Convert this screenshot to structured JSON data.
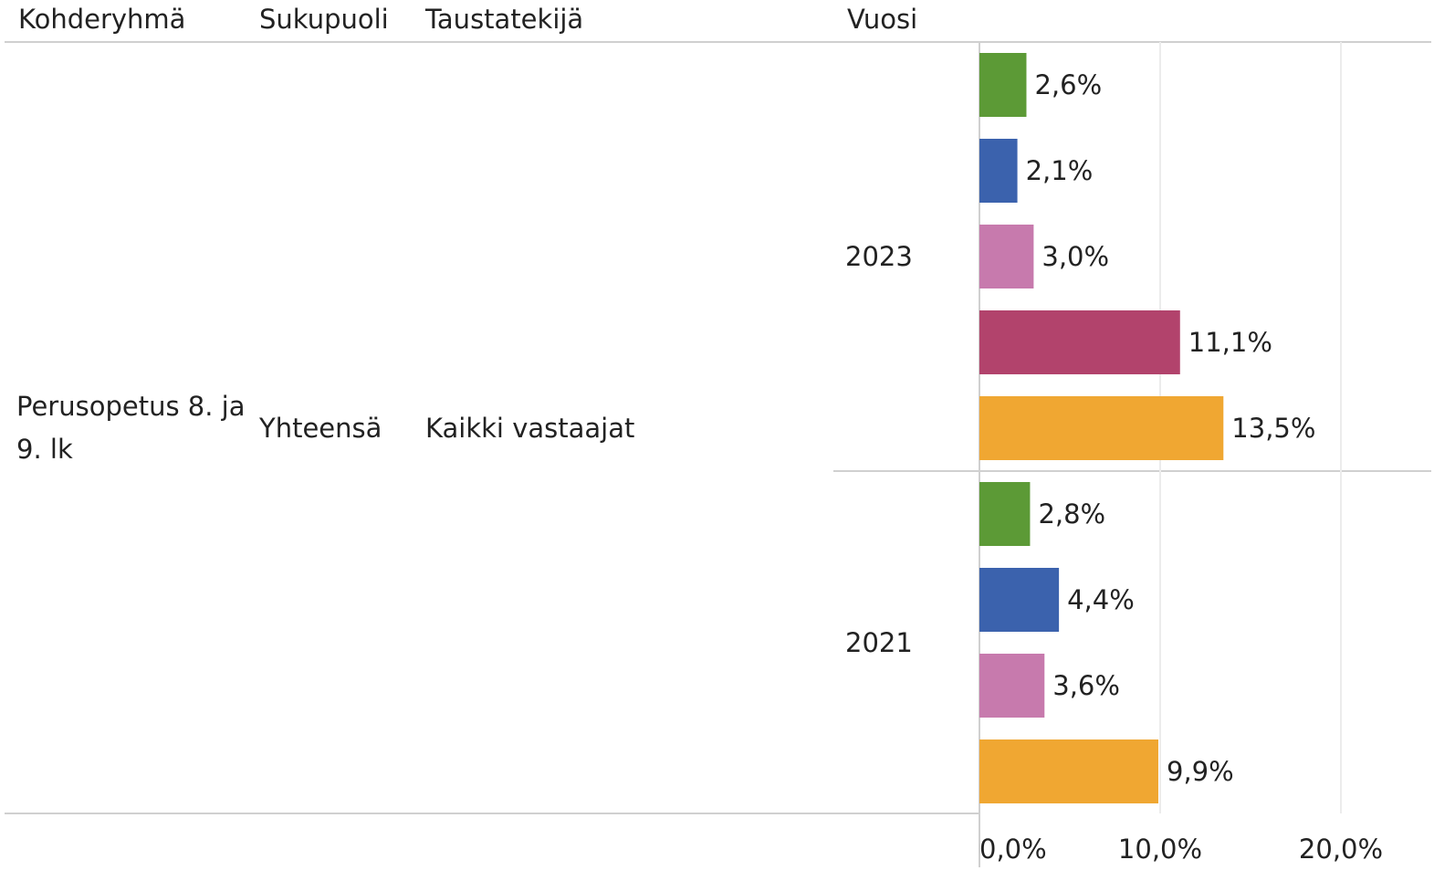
{
  "chart_data": {
    "type": "bar",
    "orientation": "horizontal",
    "headers": [
      "Kohderyhmä",
      "Sukupuoli",
      "Taustatekijä",
      "Vuosi"
    ],
    "row_labels": [
      "Perusopetus 8. ja 9. lk",
      "Yhteensä",
      "Kaikki vastaajat"
    ],
    "groups": [
      {
        "year": "2023",
        "values": [
          2.6,
          2.1,
          3.0,
          11.1,
          13.5
        ],
        "value_labels": [
          "2,6%",
          "2,1%",
          "3,0%",
          "11,1%",
          "13,5%"
        ],
        "colors": [
          "#5c9a36",
          "#3b62ad",
          "#c77aad",
          "#b2436c",
          "#f0a732"
        ]
      },
      {
        "year": "2021",
        "values": [
          2.8,
          4.4,
          3.6,
          9.9
        ],
        "value_labels": [
          "2,8%",
          "4,4%",
          "3,6%",
          "9,9%"
        ],
        "colors": [
          "#5c9a36",
          "#3b62ad",
          "#c77aad",
          "#f0a732"
        ]
      }
    ],
    "xlim": [
      0,
      25
    ],
    "xticks": [
      {
        "value": 0,
        "label": "0,0%"
      },
      {
        "value": 10,
        "label": "10,0%"
      },
      {
        "value": 20,
        "label": "20,0%"
      }
    ],
    "grid": true
  }
}
